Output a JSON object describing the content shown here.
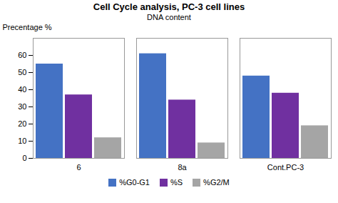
{
  "chart_data": {
    "type": "bar",
    "title": "Cell Cycle analysis, PC-3 cell lines",
    "subtitle": "DNA content",
    "categories": [
      "6",
      "8a",
      "Cont.PC-3"
    ],
    "series": [
      {
        "name": "%G0-G1",
        "color": "#4472C4",
        "values": [
          55,
          61,
          48
        ]
      },
      {
        "name": "%S",
        "color": "#7030A0",
        "values": [
          37,
          34,
          38
        ]
      },
      {
        "name": "%G2/M",
        "color": "#A5A5A5",
        "values": [
          12,
          9,
          19
        ]
      }
    ],
    "ylabel": "Precentage %",
    "ylim": [
      0,
      70
    ],
    "yticks": [
      0,
      10,
      20,
      30,
      40,
      50,
      60
    ],
    "grid": false,
    "legend": "bottom"
  }
}
